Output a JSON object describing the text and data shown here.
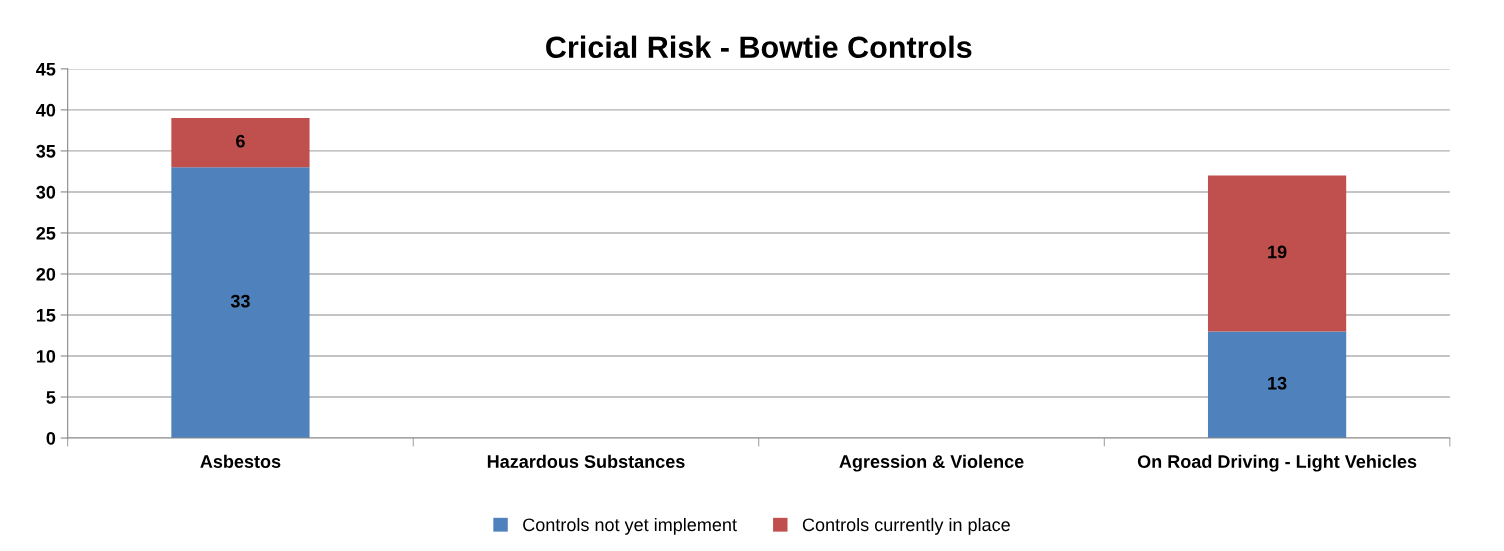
{
  "chart_data": {
    "type": "bar",
    "title": "Cricial Risk - Bowtie Controls",
    "categories": [
      "Asbestos",
      "Hazardous Substances",
      "Agression & Violence",
      "On Road Driving - Light Vehicles"
    ],
    "series": [
      {
        "name": "Controls not yet implement",
        "color": "#4f81bd",
        "values": [
          33,
          null,
          null,
          13
        ]
      },
      {
        "name": "Controls currently in place",
        "color": "#c0504d",
        "values": [
          6,
          null,
          null,
          19
        ]
      }
    ],
    "stacked": true,
    "data_labels": true,
    "ylim": [
      0,
      45
    ],
    "yticks": [
      0,
      5,
      10,
      15,
      20,
      25,
      30,
      35,
      40,
      45
    ],
    "grid": "y",
    "legend": "bottom"
  }
}
